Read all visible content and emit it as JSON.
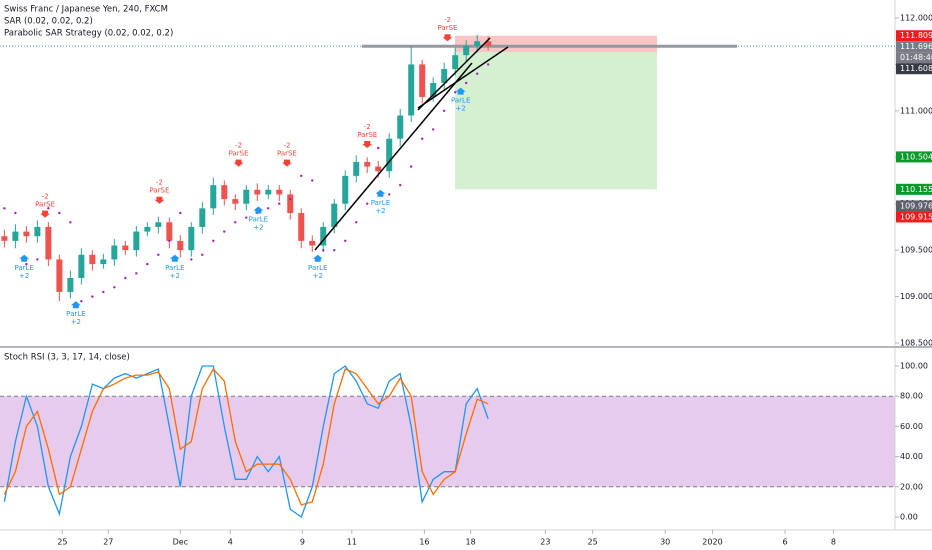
{
  "header": {
    "symbol": "Swiss Franc / Japanese Yen, 240, FXCM",
    "indicator_1": "SAR (0.02, 0.02, 0.2)",
    "indicator_2": "Parabolic SAR Strategy (0.02, 0.02, 0.2)"
  },
  "countdown": "01:48:40",
  "chart_data": [
    {
      "type": "candlestick",
      "x": [
        0,
        1,
        2,
        3,
        4,
        5,
        6,
        7,
        8,
        9,
        10,
        11,
        12,
        13,
        14,
        15,
        16,
        17,
        18,
        19,
        20,
        21,
        22,
        23,
        24,
        25,
        26,
        27,
        28,
        29,
        30,
        31,
        32,
        33,
        34,
        35,
        36,
        37,
        38,
        39,
        40,
        41,
        42,
        43,
        44
      ],
      "open": [
        109.65,
        109.6,
        109.7,
        109.65,
        109.75,
        109.4,
        109.05,
        109.2,
        109.45,
        109.35,
        109.4,
        109.55,
        109.5,
        109.7,
        109.75,
        109.8,
        109.6,
        109.5,
        109.75,
        109.95,
        110.2,
        110.05,
        110.0,
        110.15,
        110.1,
        110.15,
        110.1,
        109.9,
        109.6,
        109.55,
        109.75,
        110.0,
        110.3,
        110.45,
        110.4,
        110.35,
        110.7,
        110.95,
        111.5,
        111.15,
        111.3,
        111.45,
        111.6,
        111.7,
        111.75
      ],
      "high": [
        109.72,
        109.78,
        109.76,
        109.82,
        109.8,
        109.45,
        109.28,
        109.52,
        109.5,
        109.46,
        109.62,
        109.6,
        109.76,
        109.8,
        109.86,
        109.85,
        109.66,
        109.8,
        110.02,
        110.28,
        110.25,
        110.1,
        110.2,
        110.22,
        110.2,
        110.2,
        110.15,
        109.95,
        109.66,
        109.8,
        110.05,
        110.36,
        110.52,
        110.5,
        110.46,
        110.76,
        111.02,
        111.7,
        111.55,
        111.36,
        111.52,
        111.68,
        111.76,
        111.82,
        111.8
      ],
      "low": [
        109.53,
        109.52,
        109.58,
        109.58,
        109.33,
        108.95,
        108.98,
        109.13,
        109.28,
        109.3,
        109.33,
        109.45,
        109.43,
        109.65,
        109.68,
        109.52,
        109.42,
        109.43,
        109.68,
        109.88,
        109.98,
        109.93,
        109.93,
        110.03,
        110.05,
        110.03,
        109.83,
        109.52,
        109.48,
        109.48,
        109.68,
        109.93,
        110.23,
        110.33,
        110.28,
        110.28,
        110.62,
        110.88,
        111.08,
        111.1,
        111.23,
        111.38,
        111.53,
        111.63,
        111.65
      ],
      "close": [
        109.6,
        109.7,
        109.65,
        109.75,
        109.4,
        109.05,
        109.2,
        109.45,
        109.35,
        109.4,
        109.55,
        109.5,
        109.7,
        109.75,
        109.8,
        109.6,
        109.5,
        109.75,
        109.95,
        110.2,
        110.05,
        110.0,
        110.15,
        110.1,
        110.15,
        110.1,
        109.9,
        109.6,
        109.55,
        109.75,
        110.0,
        110.3,
        110.45,
        110.4,
        110.35,
        110.7,
        110.95,
        111.5,
        111.15,
        111.3,
        111.45,
        111.6,
        111.7,
        111.75,
        111.7
      ],
      "sar": [
        109.95,
        109.9,
        109.35,
        109.4,
        109.95,
        109.9,
        109.8,
        108.95,
        109.0,
        109.05,
        109.1,
        109.2,
        109.25,
        109.35,
        109.45,
        109.6,
        109.9,
        109.4,
        109.45,
        109.6,
        109.7,
        109.8,
        109.85,
        109.9,
        109.95,
        110.0,
        110.05,
        110.3,
        110.25,
        109.5,
        109.5,
        109.6,
        109.8,
        110.0,
        110.6,
        110.1,
        110.2,
        110.4,
        110.7,
        110.8,
        111.0,
        111.2,
        111.3,
        111.4,
        111.5
      ],
      "up_color": "#26a69a",
      "down_color": "#ef5350",
      "sar_color": "#9c27b0",
      "xlim": [
        -0.4,
        81
      ],
      "ylim": [
        108.5,
        112
      ],
      "yticks": [
        {
          "value": 112,
          "label": "112.000"
        },
        {
          "value": 111.5,
          "label": "111.500"
        },
        {
          "value": 111,
          "label": "111.000"
        },
        {
          "value": 110.5,
          "label": "110.500"
        },
        {
          "value": 110,
          "label": "110.000"
        },
        {
          "value": 109.5,
          "label": "109.500"
        },
        {
          "value": 109,
          "label": "109.000"
        },
        {
          "value": 108.5,
          "label": "108.500"
        }
      ],
      "xticks": [
        {
          "value": 5.27,
          "label": "25"
        },
        {
          "value": 9.45,
          "label": "27"
        },
        {
          "value": 16,
          "label": "Dec"
        },
        {
          "value": 20.55,
          "label": "4"
        },
        {
          "value": 27.1,
          "label": "9"
        },
        {
          "value": 31.6,
          "label": "11"
        },
        {
          "value": 38.2,
          "label": "16"
        },
        {
          "value": 42.4,
          "label": "18"
        },
        {
          "value": 49.2,
          "label": "23"
        },
        {
          "value": 53.5,
          "label": "25"
        },
        {
          "value": 60.1,
          "label": "30"
        },
        {
          "value": 64.4,
          "label": "2020"
        },
        {
          "value": 71,
          "label": "6"
        },
        {
          "value": 75.4,
          "label": "8"
        }
      ],
      "signals": [
        {
          "label": "ParLE",
          "qty": "+2",
          "x": 1.8,
          "y": 109.45
        },
        {
          "label": "ParSE",
          "qty": "-2",
          "x": 3.7,
          "y": 109.85
        },
        {
          "label": "ParLE",
          "qty": "+2",
          "x": 6.5,
          "y": 108.95
        },
        {
          "label": "ParSE",
          "qty": "-2",
          "x": 14.1,
          "y": 110.0
        },
        {
          "label": "ParLE",
          "qty": "+2",
          "x": 15.5,
          "y": 109.45
        },
        {
          "label": "ParSE",
          "qty": "-2",
          "x": 21.3,
          "y": 110.4
        },
        {
          "label": "ParLE",
          "qty": "+2",
          "x": 23.1,
          "y": 109.97
        },
        {
          "label": "ParSE",
          "qty": "-2",
          "x": 25.7,
          "y": 110.4
        },
        {
          "label": "ParLE",
          "qty": "+2",
          "x": 28.5,
          "y": 109.45
        },
        {
          "label": "ParSE",
          "qty": "-2",
          "x": 33.0,
          "y": 110.6
        },
        {
          "label": "ParLE",
          "qty": "+2",
          "x": 34.2,
          "y": 110.15
        },
        {
          "label": "ParSE",
          "qty": "-2",
          "x": 40.3,
          "y": 111.75
        },
        {
          "label": "ParLE",
          "qty": "+2",
          "x": 41.5,
          "y": 111.25
        }
      ],
      "position": {
        "stop": 111.809,
        "entry": 111.634,
        "target": 110.155,
        "stop_color": "#f7b7b7",
        "target_color": "#c9ecc6"
      },
      "hline": 111.696,
      "price_labels": [
        111.809,
        111.696,
        111.608,
        110.504,
        110.155,
        109.976,
        109.915
      ],
      "price_label_colors": [
        "#f01c1c",
        "#787b86",
        "#363a45",
        "#089a2a",
        "#089a2a",
        "#5d606b",
        "#f01c1c"
      ]
    },
    {
      "type": "line",
      "title": "Stoch RSI (3, 3, 17, 14, close)",
      "x": [
        0,
        1,
        2,
        3,
        4,
        5,
        6,
        7,
        8,
        9,
        10,
        11,
        12,
        13,
        14,
        15,
        16,
        17,
        18,
        19,
        20,
        21,
        22,
        23,
        24,
        25,
        26,
        27,
        28,
        29,
        30,
        31,
        32,
        33,
        34,
        35,
        36,
        37,
        38,
        39,
        40,
        41,
        42,
        43,
        44
      ],
      "series": [
        {
          "name": "K",
          "color": "#2196f3",
          "values": [
            10,
            50,
            80,
            60,
            20,
            2,
            40,
            60,
            88,
            85,
            92,
            95,
            92,
            95,
            98,
            60,
            20,
            80,
            100,
            100,
            60,
            25,
            25,
            40,
            30,
            40,
            5,
            0,
            20,
            60,
            95,
            100,
            90,
            75,
            72,
            90,
            95,
            60,
            10,
            25,
            30,
            30,
            75,
            85,
            65
          ]
        },
        {
          "name": "D",
          "color": "#ff6d00",
          "values": [
            15,
            30,
            60,
            70,
            45,
            15,
            20,
            45,
            70,
            85,
            88,
            92,
            94,
            94,
            96,
            85,
            45,
            50,
            85,
            98,
            90,
            50,
            30,
            35,
            35,
            35,
            25,
            8,
            10,
            35,
            75,
            98,
            95,
            85,
            75,
            80,
            92,
            80,
            30,
            15,
            25,
            30,
            55,
            78,
            75
          ]
        }
      ],
      "band": [
        20,
        80
      ],
      "band_color": "#e1bee7",
      "xlim": [
        -0.4,
        81
      ],
      "ylim": [
        0,
        100
      ],
      "yticks": [
        {
          "value": 100,
          "label": "100.00"
        },
        {
          "value": 80,
          "label": "80.00"
        },
        {
          "value": 60,
          "label": "60.00"
        },
        {
          "value": 40,
          "label": "40.00"
        },
        {
          "value": 20,
          "label": "20.00"
        },
        {
          "value": 0,
          "label": "0.00"
        }
      ]
    }
  ]
}
